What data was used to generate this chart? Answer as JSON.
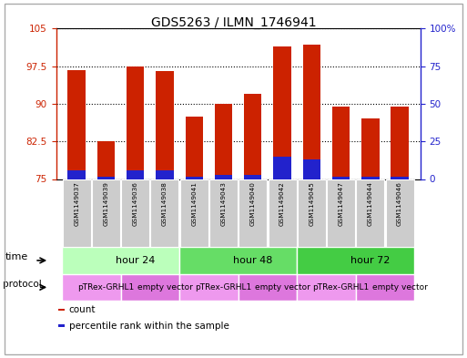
{
  "title": "GDS5263 / ILMN_1746941",
  "samples": [
    "GSM1149037",
    "GSM1149039",
    "GSM1149036",
    "GSM1149038",
    "GSM1149041",
    "GSM1149043",
    "GSM1149040",
    "GSM1149042",
    "GSM1149045",
    "GSM1149047",
    "GSM1149044",
    "GSM1149046"
  ],
  "count_values": [
    96.8,
    82.5,
    97.5,
    96.5,
    87.5,
    90.0,
    92.0,
    101.5,
    101.8,
    89.5,
    87.0,
    89.5
  ],
  "percentile_values": [
    5.5,
    1.5,
    5.5,
    5.5,
    1.5,
    2.5,
    3.0,
    15.0,
    13.0,
    1.5,
    1.5,
    1.5
  ],
  "bar_bottom": 75.0,
  "ylim_left": [
    75,
    105
  ],
  "ylim_right": [
    0,
    100
  ],
  "yticks_left": [
    75,
    82.5,
    90,
    97.5,
    105
  ],
  "yticks_right": [
    0,
    25,
    50,
    75,
    100
  ],
  "ytick_labels_left": [
    "75",
    "82.5",
    "90",
    "97.5",
    "105"
  ],
  "ytick_labels_right": [
    "0",
    "25",
    "50",
    "75",
    "100%"
  ],
  "color_count": "#cc2200",
  "color_percentile": "#2222cc",
  "time_groups": [
    {
      "label": "hour 24",
      "start": 0,
      "end": 4,
      "color": "#bbffbb"
    },
    {
      "label": "hour 48",
      "start": 4,
      "end": 8,
      "color": "#66dd66"
    },
    {
      "label": "hour 72",
      "start": 8,
      "end": 12,
      "color": "#44cc44"
    }
  ],
  "protocol_groups": [
    {
      "label": "pTRex-GRHL1",
      "start": 0,
      "end": 2,
      "color": "#ee99ee"
    },
    {
      "label": "empty vector",
      "start": 2,
      "end": 4,
      "color": "#dd77dd"
    },
    {
      "label": "pTRex-GRHL1",
      "start": 4,
      "end": 6,
      "color": "#ee99ee"
    },
    {
      "label": "empty vector",
      "start": 6,
      "end": 8,
      "color": "#dd77dd"
    },
    {
      "label": "pTRex-GRHL1",
      "start": 8,
      "end": 10,
      "color": "#ee99ee"
    },
    {
      "label": "empty vector",
      "start": 10,
      "end": 12,
      "color": "#dd77dd"
    }
  ],
  "legend_items": [
    {
      "label": "count",
      "color": "#cc2200"
    },
    {
      "label": "percentile rank within the sample",
      "color": "#2222cc"
    }
  ],
  "background_color": "#ffffff",
  "plot_bg_color": "#ffffff",
  "bar_width": 0.6,
  "time_label": "time",
  "protocol_label": "protocol",
  "outer_border_color": "#aaaaaa"
}
